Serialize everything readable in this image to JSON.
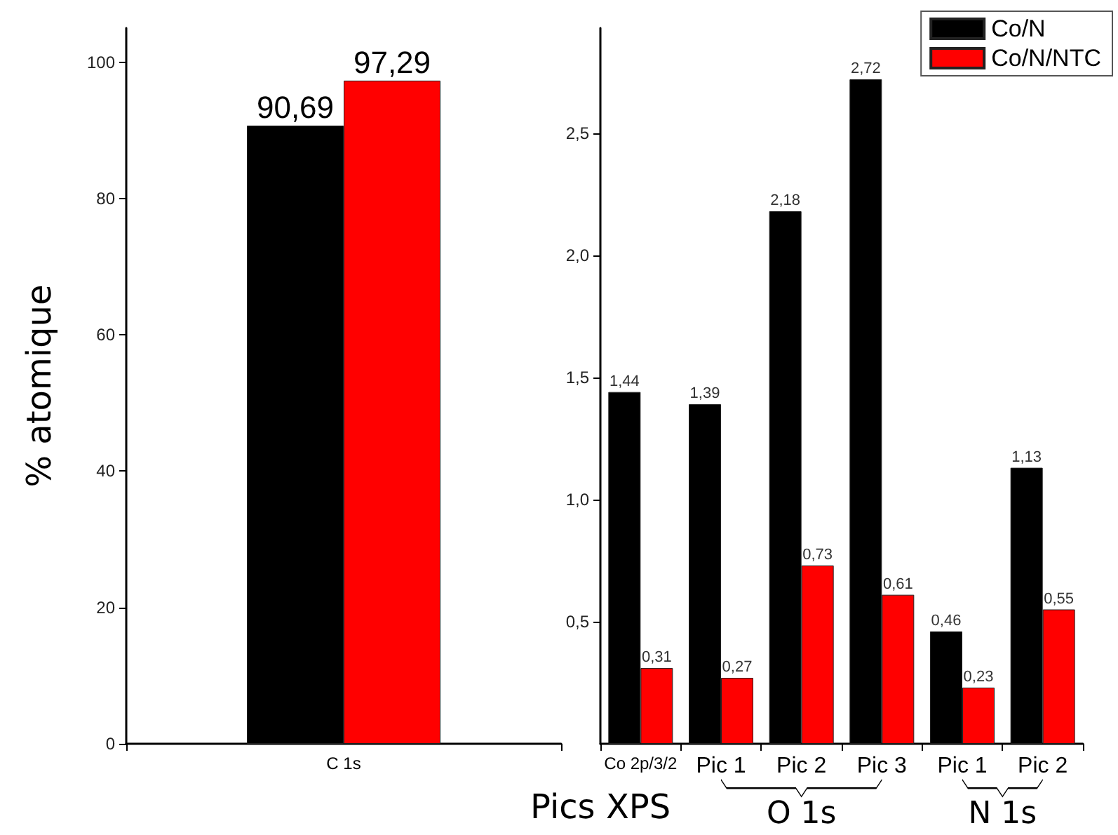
{
  "chart_data": [
    {
      "type": "bar",
      "ylabel": "% atomique",
      "categories": [
        "C 1s"
      ],
      "series": [
        {
          "color": "#000000",
          "values": [
            90.69
          ],
          "value_labels": [
            "90,69"
          ]
        },
        {
          "color": "#ff0000",
          "values": [
            97.29
          ],
          "value_labels": [
            "97,29"
          ]
        }
      ],
      "ylim": [
        0,
        105
      ],
      "yticks": [
        0,
        20,
        40,
        60,
        80,
        100
      ],
      "grid": false,
      "legend": false
    },
    {
      "type": "bar",
      "xlabel": "Pics XPS",
      "categories": [
        "Co 2p/3/2",
        "Pic 1",
        "Pic 2",
        "Pic 3",
        "Pic 1",
        "Pic 2"
      ],
      "series": [
        {
          "name": "Co/N",
          "color": "#000000",
          "values": [
            1.44,
            1.39,
            2.18,
            2.72,
            0.46,
            1.13
          ],
          "value_labels": [
            "1,44",
            "1,39",
            "2,18",
            "2,72",
            "0,46",
            "1,13"
          ]
        },
        {
          "name": "Co/N/NTC",
          "color": "#ff0000",
          "values": [
            0.31,
            0.27,
            0.73,
            0.61,
            0.23,
            0.55
          ],
          "value_labels": [
            "0,31",
            "0,27",
            "0,73",
            "0,61",
            "0,23",
            "0,55"
          ]
        }
      ],
      "ylim": [
        0,
        2.93
      ],
      "yticks": [
        {
          "value": 0.5,
          "label": "0,5"
        },
        {
          "value": 1.0,
          "label": "1,0"
        },
        {
          "value": 1.5,
          "label": "1,5"
        },
        {
          "value": 2.0,
          "label": "2,0"
        },
        {
          "value": 2.5,
          "label": "2,5"
        }
      ],
      "annotations": [
        "O 1s",
        "N 1s"
      ],
      "grid": false,
      "legend": "top right"
    }
  ]
}
